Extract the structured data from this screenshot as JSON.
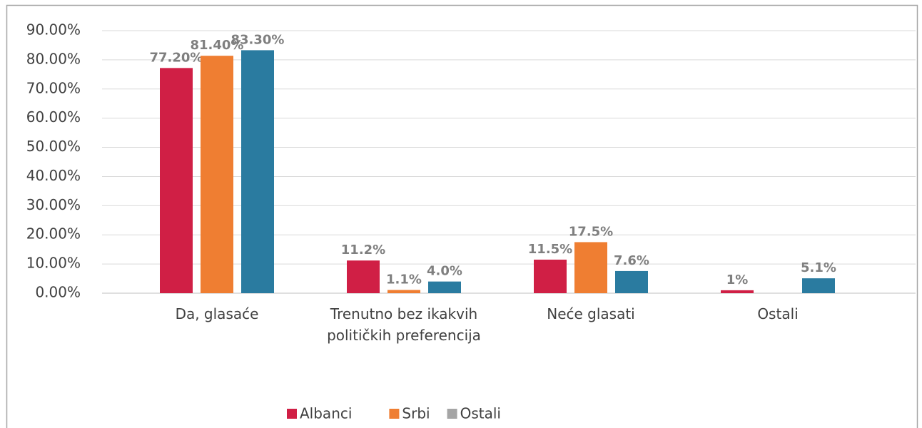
{
  "chart_data": {
    "type": "bar",
    "categories": [
      "Da, glasaće",
      "Trenutno bez ikakvih političkih preferencija",
      "Neće glasati",
      "Ostali"
    ],
    "series": [
      {
        "name": "Albanci",
        "color": "#d01f45",
        "legend_color": "#d01f45",
        "values": [
          77.2,
          11.2,
          11.5,
          1
        ],
        "value_labels": [
          "77.20%",
          "11.2%",
          "11.5%",
          "1%"
        ]
      },
      {
        "name": "Srbi",
        "color": "#ef7e32",
        "legend_color": "#ef7e32",
        "values": [
          81.4,
          1.1,
          17.5,
          null
        ],
        "value_labels": [
          "81.40%",
          "1.1%",
          "17.5%",
          null
        ]
      },
      {
        "name": "Ostali",
        "color": "#2a7ba0",
        "legend_color": "#a5a5a5",
        "values": [
          83.3,
          4.0,
          7.6,
          5.1
        ],
        "value_labels": [
          "83.30%",
          "4.0%",
          "7.6%",
          "5.1%"
        ]
      }
    ],
    "ylim": [
      0,
      90
    ],
    "yticks": [
      {
        "value": 0,
        "label": "0.00%"
      },
      {
        "value": 10,
        "label": "10.00%"
      },
      {
        "value": 20,
        "label": "20.00%"
      },
      {
        "value": 30,
        "label": "30.00%"
      },
      {
        "value": 40,
        "label": "40.00%"
      },
      {
        "value": 50,
        "label": "50.00%"
      },
      {
        "value": 60,
        "label": "60.00%"
      },
      {
        "value": 70,
        "label": "70.00%"
      },
      {
        "value": 80,
        "label": "80.00%"
      },
      {
        "value": 90,
        "label": "90.00%"
      }
    ],
    "grid": true,
    "legend": "bottom"
  }
}
